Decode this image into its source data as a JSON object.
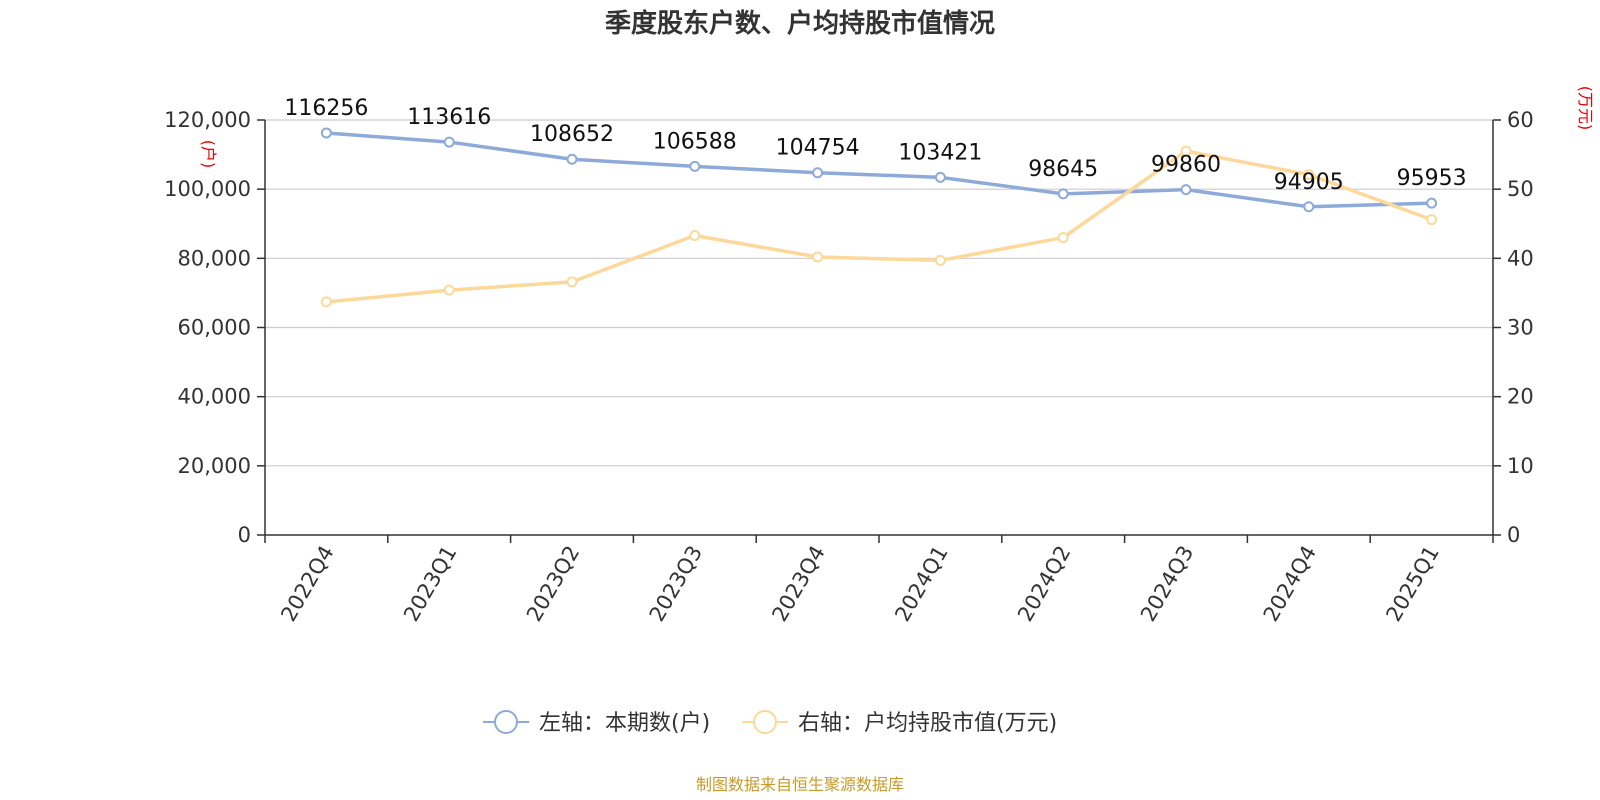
{
  "chart_data": {
    "type": "line",
    "title": "季度股东户数、户均持股市值情况",
    "categories": [
      "2022Q4",
      "2023Q1",
      "2023Q2",
      "2023Q3",
      "2023Q4",
      "2024Q1",
      "2024Q2",
      "2024Q3",
      "2024Q4",
      "2025Q1"
    ],
    "left_axis": {
      "unit": "(户)",
      "ylim": [
        0,
        120000
      ],
      "ticks": [
        "0",
        "20,000",
        "40,000",
        "60,000",
        "80,000",
        "100,000",
        "120,000"
      ],
      "tick_values": [
        0,
        20000,
        40000,
        60000,
        80000,
        100000,
        120000
      ]
    },
    "right_axis": {
      "unit": "(万元)",
      "ylim": [
        0,
        60
      ],
      "ticks": [
        "0",
        "10",
        "20",
        "30",
        "40",
        "50",
        "60"
      ],
      "tick_values": [
        0,
        10,
        20,
        30,
        40,
        50,
        60
      ]
    },
    "series": [
      {
        "name": "左轴：本期数(户)",
        "axis": "left",
        "color": "#8eaad8",
        "values": [
          116256,
          113616,
          108652,
          106588,
          104754,
          103421,
          98645,
          99860,
          94905,
          95953
        ],
        "labels": [
          "116256",
          "113616",
          "108652",
          "106588",
          "104754",
          "103421",
          "98645",
          "99860",
          "94905",
          "95953"
        ]
      },
      {
        "name": "右轴：户均持股市值(万元)",
        "axis": "right",
        "color": "#fcd99a",
        "values": [
          33.7,
          35.4,
          36.6,
          43.3,
          40.2,
          39.7,
          43.0,
          55.5,
          52.1,
          45.6
        ]
      }
    ],
    "grid": true,
    "legend_position": "bottom"
  },
  "source": "制图数据来自恒生聚源数据库"
}
